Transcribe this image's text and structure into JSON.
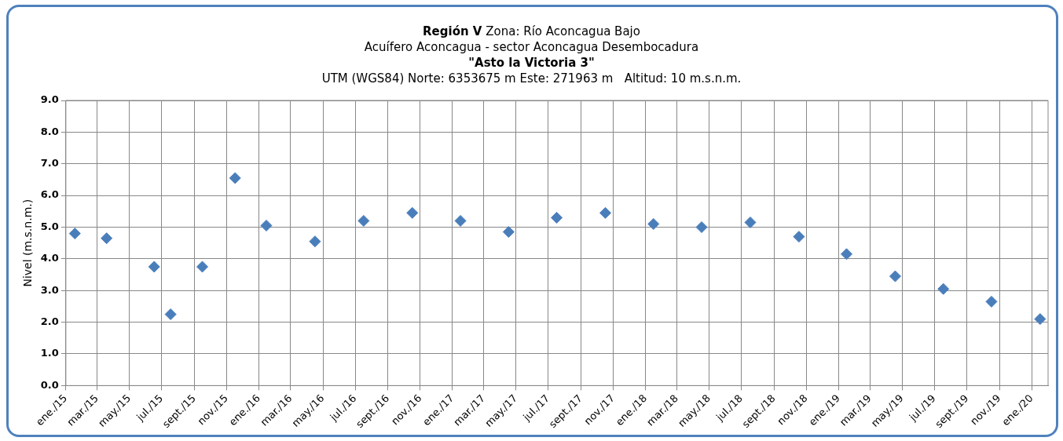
{
  "chart_data": {
    "type": "scatter",
    "title": "Región V Zona: Río Aconcagua Bajo",
    "subtitle": "Acuífero Aconcagua - sector Aconcagua Desembocadura\n\"Asto la Victoria 3\"\nUTM (WGS84) Norte: 6353675 m Este: 271963 m   Altitud: 10 m.s.n.m.",
    "ylabel": "Nivel (m.s.n.m.)",
    "x": [
      "2015-01-18",
      "2015-03-19",
      "2015-06-17",
      "2015-07-18",
      "2015-09-16",
      "2015-11-17",
      "2016-01-15",
      "2016-04-16",
      "2016-07-17",
      "2016-10-17",
      "2017-01-16",
      "2017-04-17",
      "2017-07-17",
      "2017-10-17",
      "2018-01-16",
      "2018-04-17",
      "2018-07-18",
      "2018-10-18",
      "2019-01-16",
      "2019-04-18",
      "2019-07-18",
      "2019-10-17",
      "2020-01-17"
    ],
    "values": [
      4.8,
      4.65,
      3.75,
      2.25,
      3.75,
      6.55,
      5.05,
      4.55,
      5.2,
      5.45,
      5.2,
      4.85,
      5.3,
      5.45,
      5.1,
      5.0,
      5.15,
      4.7,
      4.15,
      3.45,
      3.05,
      2.65,
      2.1
    ],
    "color": "#4a7ebb",
    "marker": "diamond",
    "grid": true,
    "legend": false,
    "xlim": [
      "2015-01-01",
      "2020-02-01"
    ],
    "xticks": [
      {
        "value": "2015-01-01",
        "label": "ene./15"
      },
      {
        "value": "2015-03-01",
        "label": "mar./15"
      },
      {
        "value": "2015-05-01",
        "label": "may./15"
      },
      {
        "value": "2015-07-01",
        "label": "jul./15"
      },
      {
        "value": "2015-09-01",
        "label": "sept./15"
      },
      {
        "value": "2015-11-01",
        "label": "nov./15"
      },
      {
        "value": "2016-01-01",
        "label": "ene./16"
      },
      {
        "value": "2016-03-01",
        "label": "mar./16"
      },
      {
        "value": "2016-05-01",
        "label": "may./16"
      },
      {
        "value": "2016-07-01",
        "label": "jul./16"
      },
      {
        "value": "2016-09-01",
        "label": "sept./16"
      },
      {
        "value": "2016-11-01",
        "label": "nov./16"
      },
      {
        "value": "2017-01-01",
        "label": "ene./17"
      },
      {
        "value": "2017-03-01",
        "label": "mar./17"
      },
      {
        "value": "2017-05-01",
        "label": "may./17"
      },
      {
        "value": "2017-07-01",
        "label": "jul./17"
      },
      {
        "value": "2017-09-01",
        "label": "sept./17"
      },
      {
        "value": "2017-11-01",
        "label": "nov./17"
      },
      {
        "value": "2018-01-01",
        "label": "ene./18"
      },
      {
        "value": "2018-03-01",
        "label": "mar./18"
      },
      {
        "value": "2018-05-01",
        "label": "may./18"
      },
      {
        "value": "2018-07-01",
        "label": "jul./18"
      },
      {
        "value": "2018-09-01",
        "label": "sept./18"
      },
      {
        "value": "2018-11-01",
        "label": "nov./18"
      },
      {
        "value": "2019-01-01",
        "label": "ene./19"
      },
      {
        "value": "2019-03-01",
        "label": "mar./19"
      },
      {
        "value": "2019-05-01",
        "label": "may./19"
      },
      {
        "value": "2019-07-01",
        "label": "jul./19"
      },
      {
        "value": "2019-09-01",
        "label": "sept./19"
      },
      {
        "value": "2019-11-01",
        "label": "nov./19"
      },
      {
        "value": "2020-01-01",
        "label": "ene./20"
      }
    ],
    "ylim": [
      0,
      9
    ],
    "yticks": [
      {
        "value": 0,
        "label": "0.0"
      },
      {
        "value": 1,
        "label": "1.0"
      },
      {
        "value": 2,
        "label": "2.0"
      },
      {
        "value": 3,
        "label": "3.0"
      },
      {
        "value": 4,
        "label": "4.0"
      },
      {
        "value": 5,
        "label": "5.0"
      },
      {
        "value": 6,
        "label": "6.0"
      },
      {
        "value": 7,
        "label": "7.0"
      },
      {
        "value": 8,
        "label": "8.0"
      },
      {
        "value": 9,
        "label": "9.0"
      }
    ]
  }
}
